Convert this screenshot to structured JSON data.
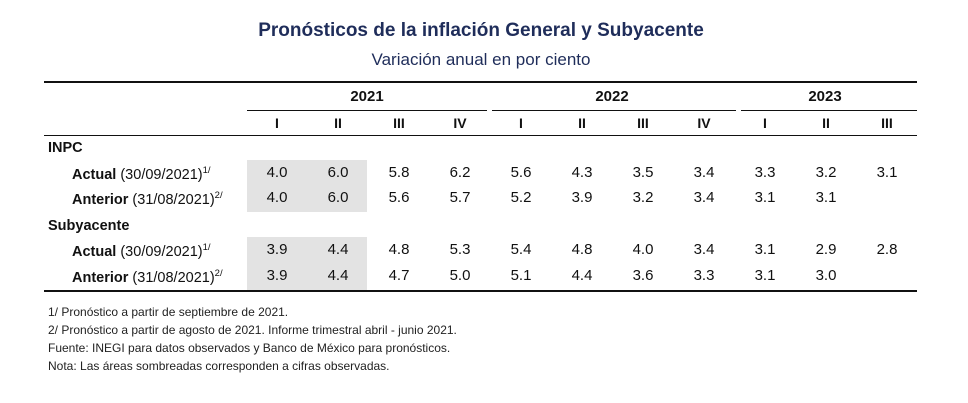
{
  "title": "Pronósticos de la inflación General y Subyacente",
  "subtitle": "Variación anual en por ciento",
  "years": [
    "2021",
    "2022",
    "2023"
  ],
  "quarters": [
    "I",
    "II",
    "III",
    "IV",
    "I",
    "II",
    "III",
    "IV",
    "I",
    "II",
    "III"
  ],
  "sections": [
    {
      "name": "INPC",
      "rows": [
        {
          "label_bold": "Actual",
          "label_rest": " (30/09/2021)",
          "sup": "1/",
          "values": [
            "4.0",
            "6.0",
            "5.8",
            "6.2",
            "5.6",
            "4.3",
            "3.5",
            "3.4",
            "3.3",
            "3.2",
            "3.1"
          ]
        },
        {
          "label_bold": "Anterior",
          "label_rest": " (31/08/2021)",
          "sup": "2/",
          "values": [
            "4.0",
            "6.0",
            "5.6",
            "5.7",
            "5.2",
            "3.9",
            "3.2",
            "3.4",
            "3.1",
            "3.1",
            ""
          ]
        }
      ]
    },
    {
      "name": "Subyacente",
      "rows": [
        {
          "label_bold": "Actual",
          "label_rest": " (30/09/2021)",
          "sup": "1/",
          "values": [
            "3.9",
            "4.4",
            "4.8",
            "5.3",
            "5.4",
            "4.8",
            "4.0",
            "3.4",
            "3.1",
            "2.9",
            "2.8"
          ]
        },
        {
          "label_bold": "Anterior",
          "label_rest": " (31/08/2021)",
          "sup": "2/",
          "values": [
            "3.9",
            "4.4",
            "4.7",
            "5.0",
            "5.1",
            "4.4",
            "3.6",
            "3.3",
            "3.1",
            "3.0",
            ""
          ]
        }
      ]
    }
  ],
  "notes": [
    "1/ Pronóstico a partir de septiembre de 2021.",
    "2/ Pronóstico a partir de agosto de 2021. Informe trimestral abril - junio 2021.",
    "Fuente: INEGI para datos observados y Banco de México para pronósticos.",
    "Nota: Las áreas sombreadas corresponden a cifras observadas."
  ]
}
